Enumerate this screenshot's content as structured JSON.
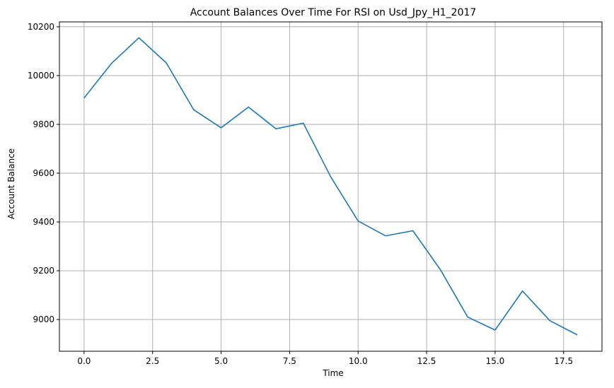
{
  "chart_data": {
    "type": "line",
    "title": "Account Balances Over Time For RSI on Usd_Jpy_H1_2017",
    "xlabel": "Time",
    "ylabel": "Account Balance",
    "xlim": [
      -0.9,
      18.9
    ],
    "ylim": [
      8870,
      10220
    ],
    "xticks": [
      0.0,
      2.5,
      5.0,
      7.5,
      10.0,
      12.5,
      15.0,
      17.5
    ],
    "xtick_labels": [
      "0.0",
      "2.5",
      "5.0",
      "7.5",
      "10.0",
      "12.5",
      "15.0",
      "17.5"
    ],
    "yticks": [
      9000,
      9200,
      9400,
      9600,
      9800,
      10000,
      10200
    ],
    "ytick_labels": [
      "9000",
      "9200",
      "9400",
      "9600",
      "9800",
      "10000",
      "10200"
    ],
    "grid": true,
    "line_color": "#1f77b4",
    "series": [
      {
        "x": [
          0,
          1,
          2,
          3,
          4,
          5,
          6,
          7,
          8,
          9,
          10,
          11,
          12,
          13,
          14,
          15,
          16,
          17,
          18
        ],
        "values": [
          9908,
          10050,
          10155,
          10052,
          9860,
          9786,
          9871,
          9782,
          9805,
          9585,
          9404,
          9343,
          9364,
          9205,
          9010,
          8957,
          9117,
          8995,
          8937
        ]
      }
    ]
  }
}
